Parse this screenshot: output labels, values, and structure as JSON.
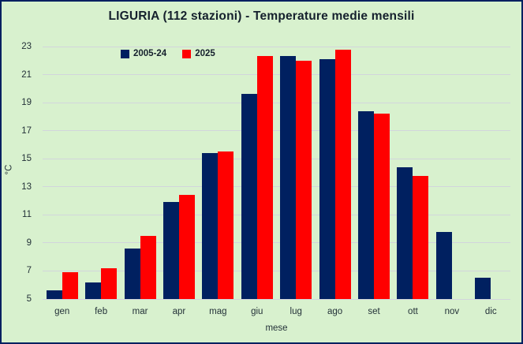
{
  "chart_title": "LIGURIA (112 stazioni) - Temperature medie mensili",
  "colors": {
    "background": "#d8f1ce",
    "border": "#002060",
    "gridline": "#d2d5dc",
    "series_2005_24": "#002060",
    "series_2025": "#ff0000",
    "text": "#233138"
  },
  "chart_data": {
    "type": "bar",
    "title": "LIGURIA (112 stazioni) - Temperature medie mensili",
    "xlabel": "mese",
    "ylabel": "°C",
    "categories": [
      "gen",
      "feb",
      "mar",
      "apr",
      "mag",
      "giu",
      "lug",
      "ago",
      "set",
      "ott",
      "nov",
      "dic"
    ],
    "series": [
      {
        "name": "2005-24",
        "color": "#002060",
        "values": [
          5.6,
          6.2,
          8.6,
          11.9,
          15.4,
          19.6,
          22.3,
          22.1,
          18.4,
          14.4,
          9.8,
          6.5
        ]
      },
      {
        "name": "2025",
        "color": "#ff0000",
        "values": [
          6.9,
          7.2,
          9.5,
          12.4,
          15.5,
          22.3,
          22.0,
          22.8,
          18.2,
          13.8,
          null,
          null
        ]
      }
    ],
    "ylim": [
      5,
      23
    ],
    "yticks": [
      5,
      7,
      9,
      11,
      13,
      15,
      17,
      19,
      21,
      23
    ],
    "grid": true,
    "legend_position": "top-left-inside"
  }
}
